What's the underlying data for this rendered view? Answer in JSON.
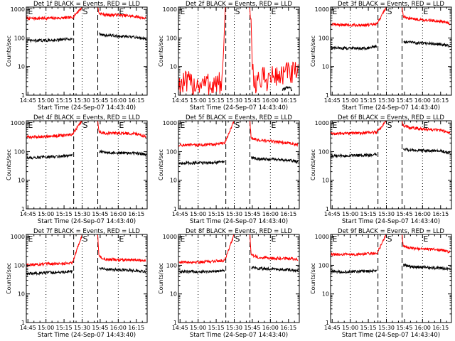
{
  "figure": {
    "common": {
      "xlabel": "Start Time (24-Sep-07 14:43:40)",
      "ylabel": "Counts/sec",
      "title_suffix": "BLACK = Events, RED = LLD",
      "time_ticks": [
        "14:45",
        "15:00",
        "15:15",
        "15:30",
        "15:45",
        "16:00",
        "16:15"
      ],
      "time_tick_minutes": [
        45,
        60,
        75,
        90,
        105,
        120,
        135
      ],
      "xlim_minutes": [
        43.67,
        144
      ],
      "y_ticks": [
        "1",
        "10",
        "100",
        "1000"
      ],
      "ylim": [
        1,
        1200
      ],
      "yscale": "log",
      "dotted_lines_minutes": [
        60,
        90,
        120
      ],
      "dashed_lines_minutes": [
        83,
        103
      ],
      "segment_marks": [
        {
          "label": "E",
          "minute": 44.5
        },
        {
          "label": "S",
          "minute": 90
        },
        {
          "label": "E",
          "minute": 120
        }
      ]
    },
    "colors": {
      "events": "#000000",
      "lld": "#ff0000",
      "axes": "#000000",
      "background": "#ffffff"
    }
  },
  "chart_data": [
    {
      "type": "line",
      "title": "Det 1f BLACK = Events, RED = LLD",
      "yscale": "log",
      "xlabel": "Start Time (24-Sep-07 14:43:40)",
      "ylabel": "Counts/sec",
      "series": [
        {
          "name": "LLD",
          "color": "#ff0000",
          "x": [
            44,
            60,
            75,
            82,
            90,
            103,
            104,
            110,
            120,
            135,
            143
          ],
          "y": [
            480,
            490,
            500,
            520,
            1200,
            1200,
            720,
            640,
            640,
            560,
            480
          ]
        },
        {
          "name": "Events",
          "color": "#000000",
          "x": [
            44,
            60,
            75,
            82,
            90,
            103,
            104,
            110,
            120,
            135,
            143
          ],
          "y": [
            80,
            82,
            88,
            95,
            null,
            null,
            135,
            125,
            115,
            105,
            95
          ]
        }
      ]
    },
    {
      "type": "line",
      "title": "Det 2f BLACK = Events, RED = LLD",
      "yscale": "log",
      "xlabel": "Start Time (24-Sep-07 14:43:40)",
      "ylabel": "Counts/sec",
      "series": [
        {
          "name": "LLD",
          "color": "#ff0000",
          "x": [
            44,
            60,
            75,
            80,
            83,
            90,
            103,
            106,
            120,
            135,
            143
          ],
          "y": [
            2.5,
            2.5,
            2.5,
            2.5,
            1200,
            1200,
            1200,
            3,
            4,
            6,
            5
          ]
        },
        {
          "name": "Events",
          "color": "#000000",
          "x": [
            130,
            135,
            138
          ],
          "y": [
            1.5,
            2,
            1.5
          ]
        }
      ]
    },
    {
      "type": "line",
      "title": "Det 3f BLACK = Events, RED = LLD",
      "yscale": "log",
      "xlabel": "Start Time (24-Sep-07 14:43:40)",
      "ylabel": "Counts/sec",
      "series": [
        {
          "name": "LLD",
          "color": "#ff0000",
          "x": [
            44,
            60,
            75,
            82,
            90,
            103,
            104,
            110,
            120,
            135,
            143
          ],
          "y": [
            300,
            280,
            285,
            300,
            1200,
            1200,
            560,
            480,
            430,
            380,
            320
          ]
        },
        {
          "name": "Events",
          "color": "#000000",
          "x": [
            44,
            60,
            75,
            82,
            90,
            103,
            104,
            110,
            120,
            135,
            143
          ],
          "y": [
            45,
            44,
            45,
            50,
            null,
            null,
            75,
            70,
            65,
            60,
            52
          ]
        }
      ]
    },
    {
      "type": "line",
      "title": "Det 4f BLACK = Events, RED = LLD",
      "yscale": "log",
      "xlabel": "Start Time (24-Sep-07 14:43:40)",
      "ylabel": "Counts/sec",
      "series": [
        {
          "name": "LLD",
          "color": "#ff0000",
          "x": [
            44,
            60,
            75,
            82,
            90,
            103,
            104,
            110,
            120,
            135,
            143
          ],
          "y": [
            320,
            340,
            370,
            400,
            1200,
            1200,
            480,
            440,
            440,
            420,
            340
          ]
        },
        {
          "name": "Events",
          "color": "#000000",
          "x": [
            44,
            60,
            75,
            82,
            90,
            103,
            104,
            110,
            120,
            135,
            143
          ],
          "y": [
            60,
            65,
            70,
            75,
            null,
            null,
            100,
            95,
            90,
            88,
            80
          ]
        }
      ]
    },
    {
      "type": "line",
      "title": "Det 5f BLACK = Events, RED = LLD",
      "yscale": "log",
      "xlabel": "Start Time (24-Sep-07 14:43:40)",
      "ylabel": "Counts/sec",
      "series": [
        {
          "name": "LLD",
          "color": "#ff0000",
          "x": [
            44,
            60,
            75,
            82,
            90,
            103,
            104,
            110,
            120,
            135,
            143
          ],
          "y": [
            170,
            170,
            180,
            200,
            1200,
            1200,
            300,
            250,
            230,
            200,
            170
          ]
        },
        {
          "name": "Events",
          "color": "#000000",
          "x": [
            44,
            60,
            75,
            82,
            90,
            103,
            104,
            110,
            120,
            135,
            143
          ],
          "y": [
            40,
            40,
            42,
            45,
            null,
            null,
            60,
            55,
            55,
            50,
            45
          ]
        }
      ]
    },
    {
      "type": "line",
      "title": "Det 6f BLACK = Events, RED = LLD",
      "yscale": "log",
      "xlabel": "Start Time (24-Sep-07 14:43:40)",
      "ylabel": "Counts/sec",
      "series": [
        {
          "name": "LLD",
          "color": "#ff0000",
          "x": [
            44,
            60,
            75,
            82,
            90,
            103,
            104,
            110,
            120,
            135,
            143
          ],
          "y": [
            420,
            440,
            460,
            480,
            1200,
            1200,
            800,
            680,
            620,
            560,
            460
          ]
        },
        {
          "name": "Events",
          "color": "#000000",
          "x": [
            44,
            60,
            75,
            82,
            90,
            103,
            104,
            110,
            120,
            135,
            143
          ],
          "y": [
            70,
            72,
            75,
            80,
            null,
            null,
            125,
            110,
            110,
            105,
            90
          ]
        }
      ]
    },
    {
      "type": "line",
      "title": "Det 7f BLACK = Events, RED = LLD",
      "yscale": "log",
      "xlabel": "Start Time (24-Sep-07 14:43:40)",
      "ylabel": "Counts/sec",
      "series": [
        {
          "name": "LLD",
          "color": "#ff0000",
          "x": [
            44,
            60,
            75,
            82,
            90,
            103,
            104,
            110,
            120,
            135,
            143
          ],
          "y": [
            105,
            110,
            115,
            125,
            1200,
            1200,
            200,
            160,
            155,
            150,
            145
          ]
        },
        {
          "name": "Events",
          "color": "#000000",
          "x": [
            44,
            60,
            75,
            82,
            90,
            103,
            104,
            110,
            120,
            135,
            143
          ],
          "y": [
            50,
            55,
            58,
            62,
            null,
            null,
            80,
            72,
            70,
            65,
            60
          ]
        }
      ]
    },
    {
      "type": "line",
      "title": "Det 8f BLACK = Events, RED = LLD",
      "yscale": "log",
      "xlabel": "Start Time (24-Sep-07 14:43:40)",
      "ylabel": "Counts/sec",
      "series": [
        {
          "name": "LLD",
          "color": "#ff0000",
          "x": [
            44,
            60,
            75,
            82,
            90,
            103,
            104,
            110,
            120,
            135,
            143
          ],
          "y": [
            130,
            130,
            140,
            150,
            1200,
            1200,
            230,
            190,
            180,
            170,
            160
          ]
        },
        {
          "name": "Events",
          "color": "#000000",
          "x": [
            44,
            60,
            75,
            82,
            90,
            103,
            104,
            110,
            120,
            135,
            143
          ],
          "y": [
            60,
            60,
            62,
            66,
            null,
            null,
            85,
            78,
            75,
            70,
            65
          ]
        }
      ]
    },
    {
      "type": "line",
      "title": "Det 9f BLACK = Events, RED = LLD",
      "yscale": "log",
      "xlabel": "Start Time (24-Sep-07 14:43:40)",
      "ylabel": "Counts/sec",
      "series": [
        {
          "name": "LLD",
          "color": "#ff0000",
          "x": [
            44,
            60,
            75,
            82,
            90,
            103,
            104,
            110,
            120,
            135,
            143
          ],
          "y": [
            240,
            240,
            250,
            260,
            1200,
            1200,
            480,
            400,
            370,
            340,
            290
          ]
        },
        {
          "name": "Events",
          "color": "#000000",
          "x": [
            44,
            60,
            75,
            82,
            90,
            103,
            104,
            110,
            120,
            135,
            143
          ],
          "y": [
            60,
            60,
            62,
            65,
            null,
            null,
            100,
            90,
            85,
            80,
            72
          ]
        }
      ]
    }
  ]
}
